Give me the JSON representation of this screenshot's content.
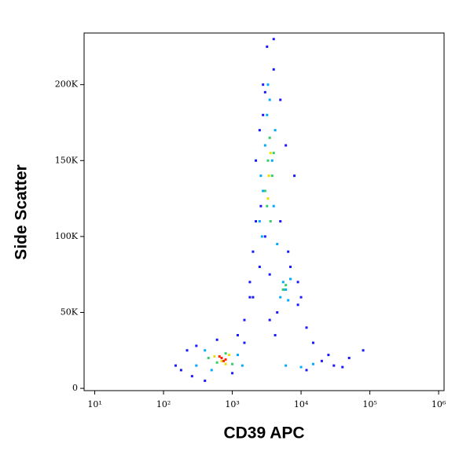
{
  "chart_data": {
    "type": "scatter",
    "x_label": "CD39 APC",
    "y_label": "Side Scatter",
    "x_scale": "log",
    "xlim": [
      7,
      1200000
    ],
    "xticks": [
      {
        "value": 10,
        "label": "10¹"
      },
      {
        "value": 100,
        "label": "10²"
      },
      {
        "value": 1000,
        "label": "10³"
      },
      {
        "value": 10000,
        "label": "10⁴"
      },
      {
        "value": 100000,
        "label": "10⁵"
      },
      {
        "value": 1000000,
        "label": "10⁶"
      }
    ],
    "ylim": [
      -1500,
      234000
    ],
    "yticks": [
      0,
      {
        "value": 50000,
        "label": "50K"
      },
      {
        "value": 100000,
        "label": "100K"
      },
      {
        "value": 150000,
        "label": "150K"
      },
      {
        "value": 200000,
        "label": "200K"
      }
    ],
    "series": [
      {
        "color": "#1a1aff",
        "x": [
          150,
          180,
          220,
          260,
          300,
          1200,
          1500,
          1800,
          2000,
          2200,
          2500,
          2800,
          3200,
          4000,
          5000,
          6000,
          8000,
          9000,
          12000,
          15000,
          20000,
          30000,
          50000,
          2000,
          2500,
          3000,
          3500,
          4500,
          5500,
          4000,
          3000,
          2200,
          1800,
          2600,
          5000,
          7000,
          10000,
          1500,
          1000,
          400,
          600,
          12000,
          25000,
          40000,
          80000,
          3500,
          4200,
          2800,
          6500,
          9000
        ],
        "y": [
          15000,
          12000,
          25000,
          8000,
          28000,
          35000,
          45000,
          60000,
          90000,
          110000,
          170000,
          200000,
          225000,
          230000,
          190000,
          160000,
          140000,
          55000,
          40000,
          30000,
          18000,
          15000,
          20000,
          60000,
          80000,
          100000,
          75000,
          50000,
          65000,
          210000,
          195000,
          150000,
          70000,
          120000,
          110000,
          80000,
          60000,
          30000,
          10000,
          5000,
          32000,
          12000,
          22000,
          14000,
          25000,
          45000,
          35000,
          180000,
          90000,
          70000
        ]
      },
      {
        "color": "#00aaff",
        "x": [
          2500,
          2800,
          3000,
          3200,
          3500,
          3800,
          4000,
          2700,
          3300,
          4200,
          5000,
          5500,
          6000,
          6500,
          7000,
          300,
          400,
          500,
          1200,
          1400,
          6000,
          10000,
          15000,
          2600,
          4500
        ],
        "y": [
          110000,
          130000,
          160000,
          180000,
          190000,
          150000,
          120000,
          100000,
          200000,
          170000,
          60000,
          70000,
          65000,
          58000,
          72000,
          15000,
          25000,
          12000,
          22000,
          15000,
          15000,
          14000,
          16000,
          140000,
          95000
        ]
      },
      {
        "color": "#33cc66",
        "x": [
          3000,
          3300,
          3500,
          3800,
          3200,
          3600,
          4000,
          5500,
          6000,
          600,
          800,
          450,
          1000
        ],
        "y": [
          130000,
          150000,
          165000,
          140000,
          120000,
          110000,
          155000,
          65000,
          68000,
          17000,
          23000,
          20000,
          16000
        ]
      },
      {
        "color": "#e8e000",
        "x": [
          3400,
          3600,
          3300,
          550,
          700,
          900,
          800
        ],
        "y": [
          140000,
          155000,
          125000,
          21000,
          18000,
          22000,
          16000
        ]
      },
      {
        "color": "#ff2200",
        "x": [
          700,
          800,
          650,
          750
        ],
        "y": [
          20000,
          19000,
          21000,
          18000
        ]
      }
    ]
  }
}
